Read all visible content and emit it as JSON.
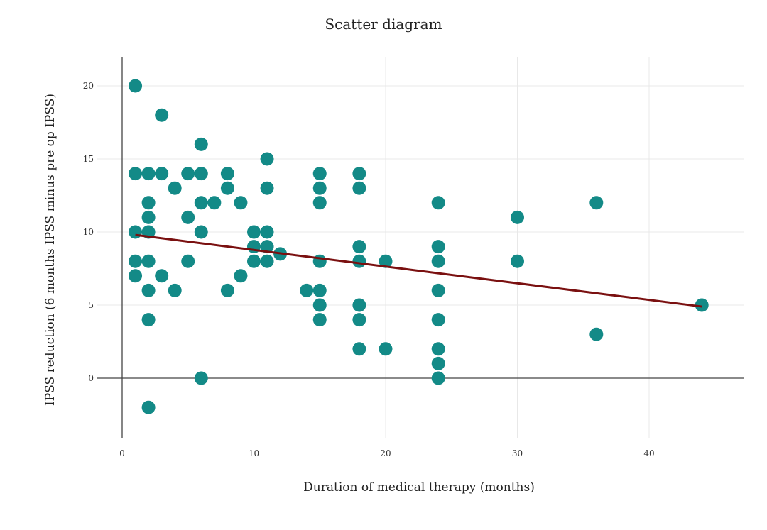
{
  "chart_data": {
    "type": "scatter",
    "title": "Scatter diagram",
    "xlabel": "Duration of medical therapy (months)",
    "ylabel": "IPSS reduction (6 months IPSS minus pre op IPSS)",
    "xlim": [
      -0.5,
      47
    ],
    "ylim": [
      -4,
      21.5
    ],
    "xticks": [
      0,
      10,
      20,
      30,
      40
    ],
    "yticks": [
      0,
      5,
      10,
      15,
      20
    ],
    "grid": true,
    "legend": "none",
    "colors": {
      "points": "#138a87",
      "trend": "#7a1010",
      "grid": "#e8e8e8",
      "axis": "#444444"
    },
    "points": [
      {
        "x": 1,
        "y": 20
      },
      {
        "x": 1,
        "y": 14
      },
      {
        "x": 1,
        "y": 10
      },
      {
        "x": 1,
        "y": 8
      },
      {
        "x": 1,
        "y": 7
      },
      {
        "x": 2,
        "y": 14
      },
      {
        "x": 2,
        "y": 12
      },
      {
        "x": 2,
        "y": 11
      },
      {
        "x": 2,
        "y": 10
      },
      {
        "x": 2,
        "y": 8
      },
      {
        "x": 2,
        "y": 6
      },
      {
        "x": 2,
        "y": 4
      },
      {
        "x": 2,
        "y": -2
      },
      {
        "x": 3,
        "y": 18
      },
      {
        "x": 3,
        "y": 14
      },
      {
        "x": 3,
        "y": 7
      },
      {
        "x": 4,
        "y": 13
      },
      {
        "x": 4,
        "y": 6
      },
      {
        "x": 5,
        "y": 14
      },
      {
        "x": 5,
        "y": 11
      },
      {
        "x": 5,
        "y": 8
      },
      {
        "x": 6,
        "y": 16
      },
      {
        "x": 6,
        "y": 14
      },
      {
        "x": 6,
        "y": 12
      },
      {
        "x": 6,
        "y": 10
      },
      {
        "x": 6,
        "y": 0
      },
      {
        "x": 7,
        "y": 12
      },
      {
        "x": 8,
        "y": 14
      },
      {
        "x": 8,
        "y": 13
      },
      {
        "x": 8,
        "y": 6
      },
      {
        "x": 9,
        "y": 12
      },
      {
        "x": 9,
        "y": 7
      },
      {
        "x": 10,
        "y": 10
      },
      {
        "x": 10,
        "y": 9
      },
      {
        "x": 10,
        "y": 8
      },
      {
        "x": 11,
        "y": 15
      },
      {
        "x": 11,
        "y": 13
      },
      {
        "x": 11,
        "y": 10
      },
      {
        "x": 11,
        "y": 9
      },
      {
        "x": 11,
        "y": 8
      },
      {
        "x": 12,
        "y": 8.5
      },
      {
        "x": 14,
        "y": 6
      },
      {
        "x": 15,
        "y": 14
      },
      {
        "x": 15,
        "y": 13
      },
      {
        "x": 15,
        "y": 12
      },
      {
        "x": 15,
        "y": 8
      },
      {
        "x": 15,
        "y": 6
      },
      {
        "x": 15,
        "y": 5
      },
      {
        "x": 15,
        "y": 4
      },
      {
        "x": 18,
        "y": 14
      },
      {
        "x": 18,
        "y": 13
      },
      {
        "x": 18,
        "y": 9
      },
      {
        "x": 18,
        "y": 8
      },
      {
        "x": 18,
        "y": 5
      },
      {
        "x": 18,
        "y": 4
      },
      {
        "x": 18,
        "y": 2
      },
      {
        "x": 20,
        "y": 8
      },
      {
        "x": 20,
        "y": 2
      },
      {
        "x": 24,
        "y": 12
      },
      {
        "x": 24,
        "y": 9
      },
      {
        "x": 24,
        "y": 8
      },
      {
        "x": 24,
        "y": 6
      },
      {
        "x": 24,
        "y": 4
      },
      {
        "x": 24,
        "y": 2
      },
      {
        "x": 24,
        "y": 1
      },
      {
        "x": 24,
        "y": 0
      },
      {
        "x": 30,
        "y": 11
      },
      {
        "x": 30,
        "y": 8
      },
      {
        "x": 36,
        "y": 12
      },
      {
        "x": 36,
        "y": 3
      },
      {
        "x": 44,
        "y": 5
      }
    ],
    "trendline": {
      "x": [
        1,
        44
      ],
      "y": [
        9.8,
        4.9
      ]
    }
  }
}
